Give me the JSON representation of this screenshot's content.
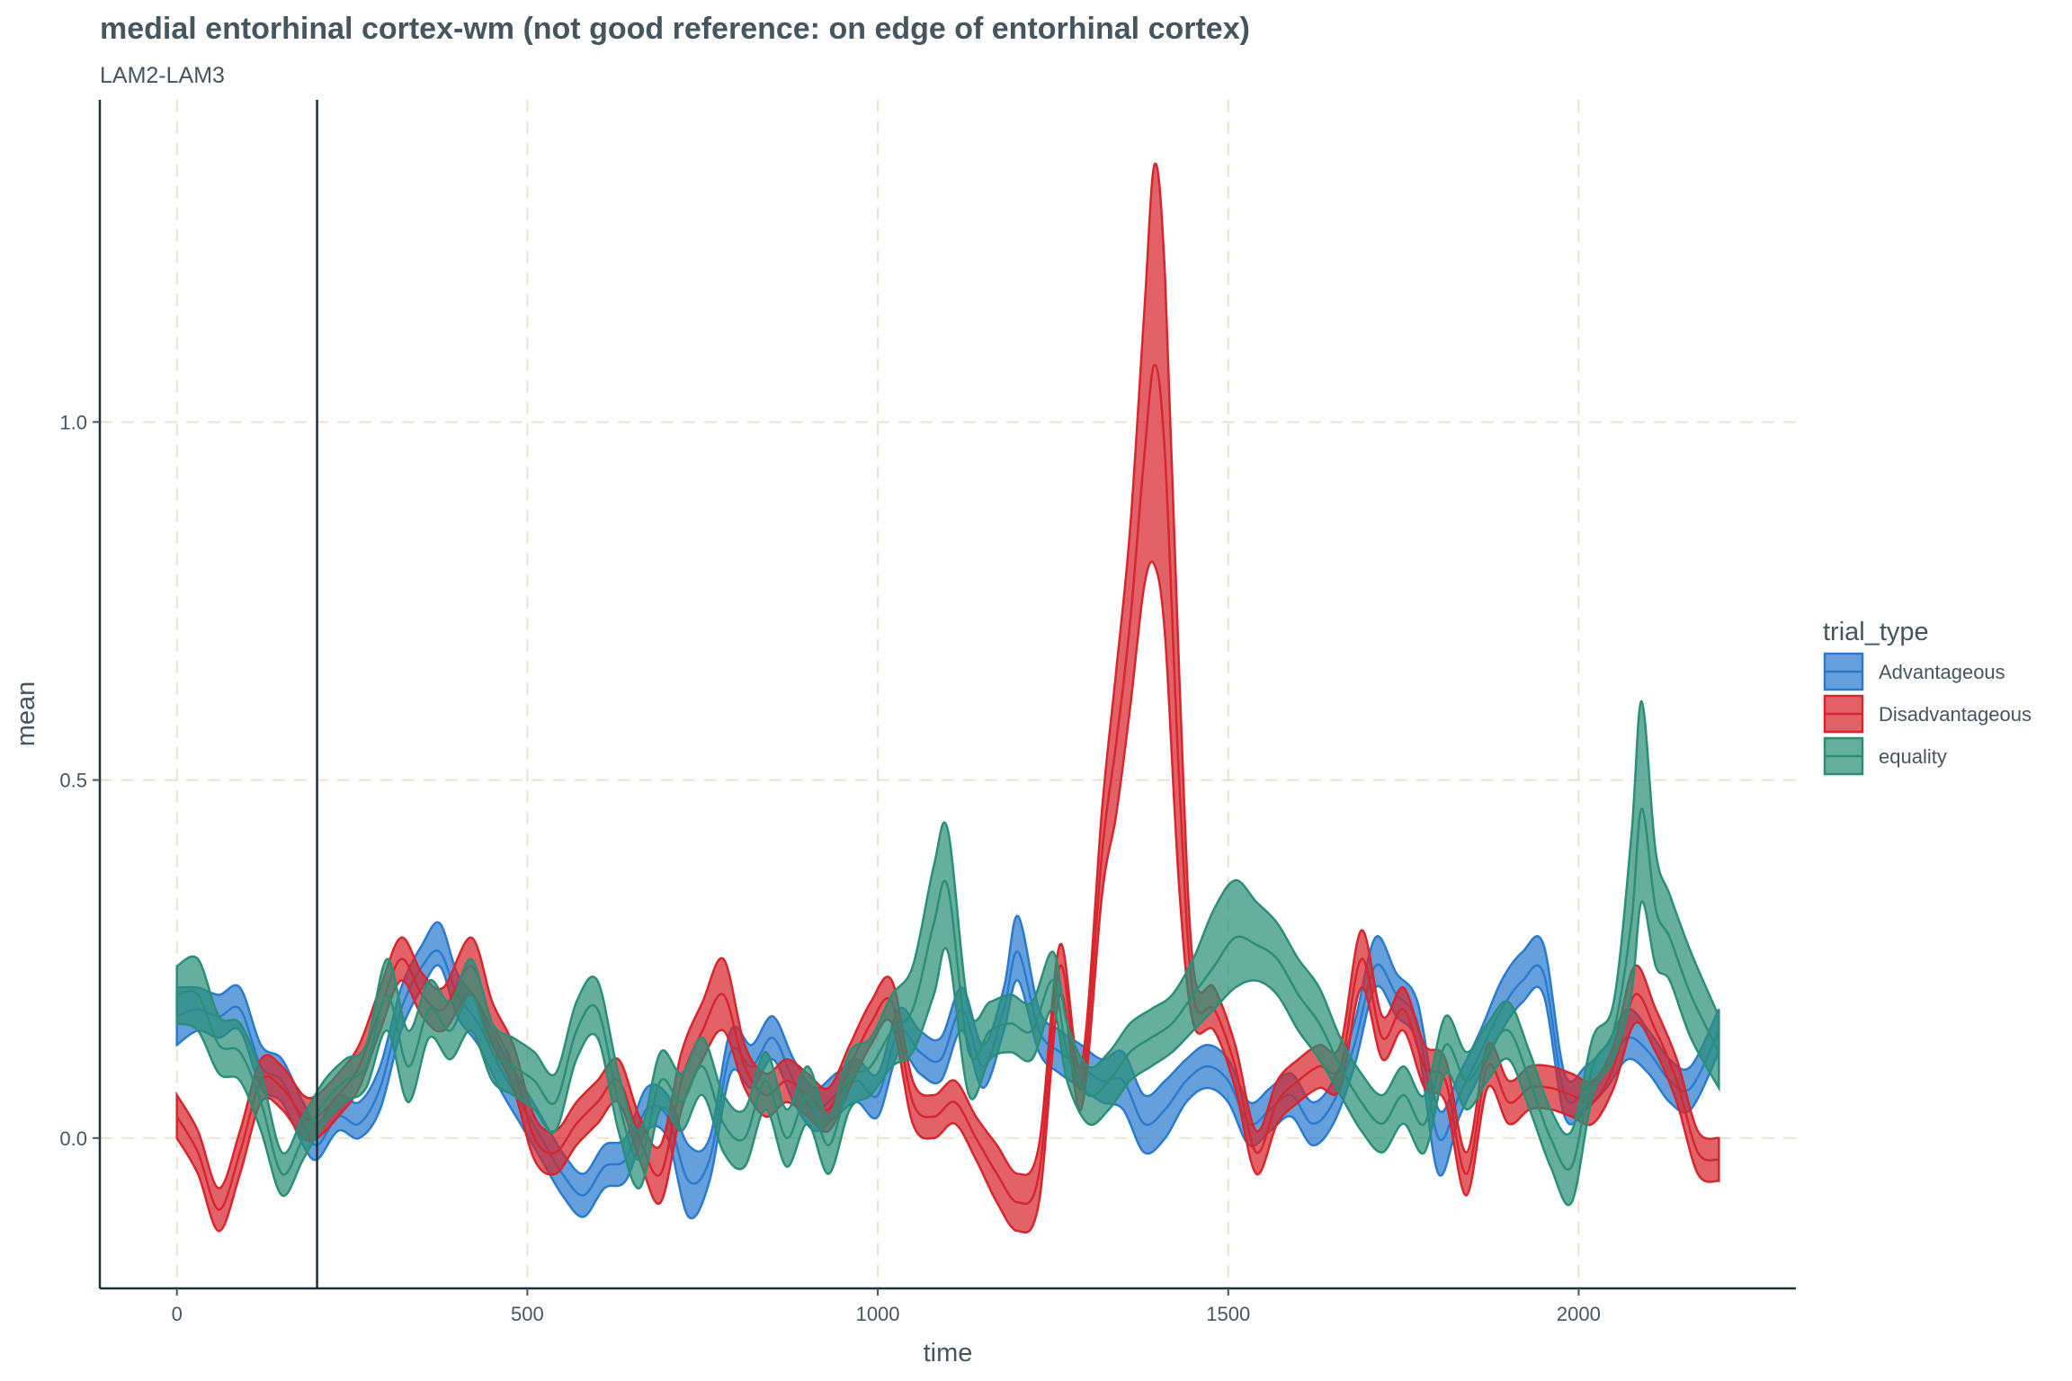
{
  "chart_data": {
    "type": "area",
    "title": "medial entorhinal cortex-wm (not good reference: on edge of entorhinal cortex)",
    "subtitle": "LAM2-LAM3",
    "xlabel": "time",
    "ylabel": "mean",
    "xlim": [
      -110,
      2310
    ],
    "ylim": [
      -0.21,
      1.45
    ],
    "x_ticks": [
      0,
      500,
      1000,
      1500,
      2000
    ],
    "x_tick_labels": [
      "0",
      "500",
      "1000",
      "1500",
      "2000"
    ],
    "y_ticks": [
      0.0,
      0.5,
      1.0
    ],
    "y_tick_labels": [
      "0.0",
      "0.5",
      "1.0"
    ],
    "vline_x": 200,
    "grid": true,
    "legend": {
      "title": "trial_type",
      "position": "right",
      "labels": [
        "Advantageous",
        "Disadvantageous",
        "equality"
      ]
    },
    "series": [
      {
        "name": "Advantageous",
        "color": "#2a7bcf",
        "fill": "#2a7bcf",
        "x": [
          0,
          30,
          60,
          90,
          120,
          150,
          180,
          200,
          230,
          260,
          290,
          320,
          350,
          375,
          400,
          430,
          460,
          490,
          520,
          550,
          580,
          610,
          640,
          670,
          700,
          730,
          760,
          790,
          820,
          850,
          880,
          910,
          940,
          970,
          1000,
          1030,
          1060,
          1090,
          1120,
          1150,
          1180,
          1200,
          1230,
          1260,
          1290,
          1320,
          1350,
          1380,
          1410,
          1440,
          1470,
          1500,
          1530,
          1560,
          1590,
          1620,
          1650,
          1680,
          1710,
          1740,
          1770,
          1800,
          1830,
          1860,
          1890,
          1920,
          1950,
          1980,
          2010,
          2040,
          2070,
          2100,
          2130,
          2160,
          2200
        ],
        "mean": [
          0.17,
          0.18,
          0.17,
          0.18,
          0.1,
          0.08,
          0.02,
          -0.01,
          0.03,
          0.02,
          0.07,
          0.18,
          0.24,
          0.26,
          0.2,
          0.16,
          0.1,
          0.05,
          0.0,
          -0.05,
          -0.08,
          -0.04,
          -0.03,
          0.04,
          0.03,
          -0.06,
          -0.03,
          0.12,
          0.1,
          0.14,
          0.08,
          0.04,
          0.06,
          0.08,
          0.06,
          0.15,
          0.12,
          0.11,
          0.18,
          0.1,
          0.18,
          0.26,
          0.15,
          0.12,
          0.1,
          0.08,
          0.08,
          0.02,
          0.04,
          0.08,
          0.1,
          0.08,
          0.02,
          0.04,
          0.06,
          0.02,
          0.05,
          0.13,
          0.24,
          0.2,
          0.16,
          0.0,
          0.06,
          0.12,
          0.18,
          0.22,
          0.23,
          0.06,
          0.07,
          0.1,
          0.14,
          0.12,
          0.08,
          0.07,
          0.15
        ],
        "lower": [
          0.13,
          0.15,
          0.14,
          0.15,
          0.07,
          0.05,
          -0.01,
          -0.03,
          0.01,
          0.0,
          0.04,
          0.15,
          0.21,
          0.24,
          0.17,
          0.13,
          0.07,
          0.02,
          -0.03,
          -0.08,
          -0.11,
          -0.07,
          -0.06,
          0.01,
          0.0,
          -0.11,
          -0.06,
          0.09,
          0.07,
          0.11,
          0.05,
          0.01,
          0.03,
          0.05,
          0.03,
          0.12,
          0.09,
          0.08,
          0.15,
          0.07,
          0.15,
          0.22,
          0.12,
          0.09,
          0.07,
          0.05,
          0.04,
          -0.02,
          0.0,
          0.05,
          0.07,
          0.05,
          -0.01,
          0.01,
          0.03,
          -0.01,
          0.02,
          0.1,
          0.21,
          0.17,
          0.13,
          -0.05,
          0.03,
          0.09,
          0.15,
          0.19,
          0.2,
          0.03,
          0.04,
          0.07,
          0.11,
          0.09,
          0.05,
          0.04,
          0.12
        ],
        "upper": [
          0.21,
          0.21,
          0.2,
          0.21,
          0.13,
          0.11,
          0.05,
          0.02,
          0.06,
          0.05,
          0.1,
          0.21,
          0.27,
          0.3,
          0.23,
          0.19,
          0.13,
          0.08,
          0.03,
          -0.02,
          -0.05,
          -0.01,
          0.0,
          0.07,
          0.06,
          -0.01,
          0.0,
          0.15,
          0.13,
          0.17,
          0.11,
          0.07,
          0.09,
          0.11,
          0.09,
          0.18,
          0.15,
          0.14,
          0.21,
          0.13,
          0.21,
          0.31,
          0.18,
          0.15,
          0.13,
          0.11,
          0.12,
          0.06,
          0.08,
          0.11,
          0.13,
          0.11,
          0.05,
          0.07,
          0.09,
          0.05,
          0.08,
          0.16,
          0.28,
          0.23,
          0.19,
          0.04,
          0.09,
          0.15,
          0.22,
          0.26,
          0.27,
          0.09,
          0.1,
          0.13,
          0.18,
          0.15,
          0.11,
          0.1,
          0.18
        ]
      },
      {
        "name": "Disadvantageous",
        "color": "#d7262e",
        "fill": "#d7262e",
        "x": [
          0,
          30,
          60,
          90,
          120,
          150,
          180,
          200,
          230,
          260,
          290,
          320,
          350,
          380,
          420,
          450,
          480,
          510,
          540,
          570,
          600,
          630,
          660,
          690,
          720,
          750,
          780,
          810,
          840,
          870,
          900,
          930,
          960,
          990,
          1020,
          1050,
          1080,
          1110,
          1140,
          1170,
          1200,
          1230,
          1260,
          1290,
          1320,
          1340,
          1360,
          1380,
          1395,
          1410,
          1430,
          1450,
          1480,
          1510,
          1540,
          1570,
          1600,
          1630,
          1660,
          1690,
          1720,
          1750,
          1780,
          1810,
          1840,
          1870,
          1900,
          1930,
          1960,
          1990,
          2020,
          2050,
          2080,
          2110,
          2140,
          2170,
          2200
        ],
        "mean": [
          0.03,
          -0.02,
          -0.1,
          -0.02,
          0.08,
          0.07,
          0.03,
          0.03,
          0.06,
          0.1,
          0.18,
          0.25,
          0.2,
          0.18,
          0.24,
          0.16,
          0.1,
          0.0,
          -0.02,
          0.02,
          0.05,
          0.08,
          0.0,
          -0.05,
          0.08,
          0.15,
          0.2,
          0.1,
          0.06,
          0.08,
          0.06,
          0.04,
          0.1,
          0.16,
          0.19,
          0.05,
          0.03,
          0.05,
          0.0,
          -0.05,
          -0.09,
          -0.05,
          0.24,
          0.07,
          0.4,
          0.55,
          0.72,
          0.95,
          1.08,
          0.95,
          0.5,
          0.2,
          0.18,
          0.1,
          -0.02,
          0.05,
          0.08,
          0.1,
          0.1,
          0.25,
          0.14,
          0.18,
          0.1,
          0.08,
          -0.05,
          0.1,
          0.05,
          0.07,
          0.07,
          0.06,
          0.05,
          0.1,
          0.2,
          0.15,
          0.08,
          -0.02,
          -0.03
        ],
        "lower": [
          0.0,
          -0.05,
          -0.13,
          -0.05,
          0.05,
          0.04,
          0.0,
          0.0,
          0.03,
          0.07,
          0.15,
          0.22,
          0.17,
          0.15,
          0.2,
          0.13,
          0.07,
          -0.03,
          -0.05,
          -0.01,
          0.02,
          0.05,
          -0.03,
          -0.09,
          0.04,
          0.11,
          0.15,
          0.07,
          0.03,
          0.05,
          0.03,
          0.01,
          0.07,
          0.13,
          0.16,
          0.02,
          0.0,
          0.02,
          -0.03,
          -0.09,
          -0.13,
          -0.09,
          0.2,
          0.04,
          0.34,
          0.45,
          0.6,
          0.77,
          0.8,
          0.7,
          0.35,
          0.16,
          0.15,
          0.07,
          -0.05,
          0.02,
          0.05,
          0.07,
          0.07,
          0.21,
          0.11,
          0.15,
          0.07,
          0.05,
          -0.08,
          0.07,
          0.02,
          0.04,
          0.04,
          0.03,
          0.02,
          0.07,
          0.16,
          0.12,
          0.05,
          -0.05,
          -0.06
        ],
        "upper": [
          0.06,
          0.01,
          -0.07,
          0.01,
          0.11,
          0.1,
          0.06,
          0.06,
          0.09,
          0.13,
          0.21,
          0.28,
          0.23,
          0.21,
          0.28,
          0.19,
          0.13,
          0.03,
          0.01,
          0.05,
          0.08,
          0.11,
          0.03,
          -0.01,
          0.12,
          0.19,
          0.25,
          0.13,
          0.09,
          0.11,
          0.09,
          0.07,
          0.13,
          0.19,
          0.22,
          0.08,
          0.06,
          0.08,
          0.03,
          -0.01,
          -0.05,
          -0.01,
          0.27,
          0.1,
          0.46,
          0.65,
          0.85,
          1.15,
          1.36,
          1.2,
          0.65,
          0.24,
          0.21,
          0.13,
          0.01,
          0.08,
          0.11,
          0.13,
          0.13,
          0.29,
          0.17,
          0.21,
          0.13,
          0.11,
          -0.02,
          0.13,
          0.08,
          0.1,
          0.1,
          0.09,
          0.08,
          0.13,
          0.24,
          0.18,
          0.11,
          0.01,
          0.0
        ]
      },
      {
        "name": "equality",
        "color": "#2b8f78",
        "fill": "#2b8f78",
        "x": [
          0,
          30,
          60,
          90,
          120,
          150,
          180,
          210,
          240,
          270,
          300,
          330,
          360,
          390,
          420,
          450,
          480,
          510,
          540,
          570,
          600,
          630,
          660,
          690,
          720,
          750,
          780,
          810,
          840,
          870,
          900,
          930,
          960,
          990,
          1020,
          1050,
          1080,
          1100,
          1130,
          1160,
          1190,
          1220,
          1250,
          1270,
          1300,
          1330,
          1360,
          1390,
          1420,
          1450,
          1480,
          1510,
          1540,
          1570,
          1600,
          1630,
          1660,
          1690,
          1720,
          1750,
          1780,
          1810,
          1840,
          1870,
          1900,
          1930,
          1960,
          1990,
          2020,
          2050,
          2075,
          2090,
          2110,
          2130,
          2160,
          2200
        ],
        "mean": [
          0.2,
          0.2,
          0.13,
          0.12,
          0.05,
          -0.05,
          0.0,
          0.05,
          0.08,
          0.1,
          0.2,
          0.1,
          0.18,
          0.15,
          0.2,
          0.12,
          0.1,
          0.08,
          0.05,
          0.15,
          0.18,
          0.05,
          -0.03,
          0.08,
          0.05,
          0.1,
          0.02,
          0.0,
          0.08,
          0.0,
          0.06,
          -0.01,
          0.08,
          0.1,
          0.15,
          0.18,
          0.3,
          0.35,
          0.12,
          0.15,
          0.16,
          0.15,
          0.22,
          0.12,
          0.06,
          0.08,
          0.12,
          0.14,
          0.16,
          0.2,
          0.24,
          0.28,
          0.27,
          0.25,
          0.2,
          0.16,
          0.1,
          0.05,
          0.02,
          0.06,
          0.02,
          0.13,
          0.08,
          0.12,
          0.15,
          0.08,
          0.0,
          -0.04,
          0.1,
          0.15,
          0.3,
          0.46,
          0.32,
          0.28,
          0.2,
          0.12
        ],
        "lower": [
          0.16,
          0.15,
          0.09,
          0.08,
          0.01,
          -0.08,
          -0.03,
          0.02,
          0.05,
          0.07,
          0.15,
          0.05,
          0.14,
          0.11,
          0.15,
          0.08,
          0.06,
          0.04,
          0.01,
          0.11,
          0.14,
          0.01,
          -0.07,
          0.04,
          0.01,
          0.06,
          -0.02,
          -0.04,
          0.04,
          -0.04,
          0.02,
          -0.05,
          0.04,
          0.06,
          0.1,
          0.12,
          0.2,
          0.26,
          0.06,
          0.11,
          0.12,
          0.11,
          0.18,
          0.08,
          0.02,
          0.04,
          0.08,
          0.1,
          0.12,
          0.15,
          0.18,
          0.21,
          0.22,
          0.2,
          0.15,
          0.11,
          0.06,
          0.01,
          -0.02,
          0.02,
          -0.02,
          0.09,
          0.04,
          0.08,
          0.11,
          0.04,
          -0.04,
          -0.09,
          0.06,
          0.11,
          0.2,
          0.33,
          0.24,
          0.22,
          0.14,
          0.07
        ],
        "upper": [
          0.24,
          0.25,
          0.17,
          0.16,
          0.09,
          -0.02,
          0.03,
          0.08,
          0.11,
          0.13,
          0.25,
          0.15,
          0.22,
          0.19,
          0.25,
          0.16,
          0.14,
          0.12,
          0.09,
          0.19,
          0.22,
          0.09,
          0.01,
          0.12,
          0.09,
          0.14,
          0.06,
          0.04,
          0.12,
          0.04,
          0.1,
          0.03,
          0.12,
          0.14,
          0.2,
          0.24,
          0.38,
          0.43,
          0.18,
          0.19,
          0.2,
          0.19,
          0.26,
          0.16,
          0.1,
          0.12,
          0.16,
          0.18,
          0.2,
          0.25,
          0.32,
          0.36,
          0.33,
          0.3,
          0.25,
          0.21,
          0.14,
          0.09,
          0.06,
          0.1,
          0.06,
          0.17,
          0.12,
          0.16,
          0.19,
          0.12,
          0.04,
          0.01,
          0.14,
          0.19,
          0.42,
          0.61,
          0.4,
          0.34,
          0.26,
          0.17
        ]
      }
    ]
  }
}
